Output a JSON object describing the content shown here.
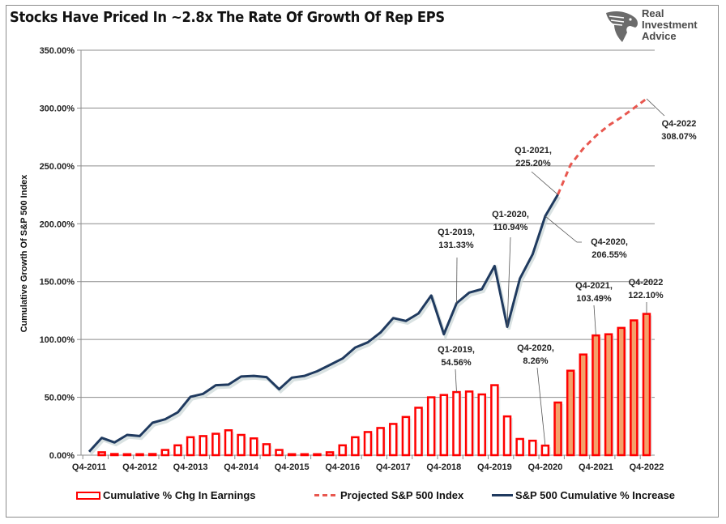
{
  "header": {
    "title": "Stocks Have Priced In ~2.8x The Rate Of Growth Of Rep EPS",
    "logo_lines": [
      "Real",
      "Investment",
      "Advice"
    ],
    "logo_icon": "eagle-head-icon"
  },
  "legend": {
    "items": [
      {
        "label": "Cumulative % Chg In Earnings",
        "swatch": "bar-outline"
      },
      {
        "label": "Projected S&P 500 Index",
        "swatch": "dashed-line"
      },
      {
        "label": "S&P 500 Cumulative % Increase",
        "swatch": "solid-line"
      }
    ]
  },
  "colors": {
    "sp500_line": "#1f3a5f",
    "projection_line": "#e8574f",
    "bar_border": "#ff0000",
    "bar_fill_historical": "#ffffff",
    "bar_fill_projected": "#f4a06a",
    "grid": "#8c8c8c"
  },
  "chart_data": {
    "type": "bar",
    "title": "Stocks Have Priced In ~2.8x The Rate Of Growth Of Rep EPS",
    "xlabel": "",
    "ylabel": "Cumulative Growth Of S&P 500 Index",
    "ylim": [
      0,
      350
    ],
    "yticks": [
      "0.00%",
      "50.00%",
      "100.00%",
      "150.00%",
      "200.00%",
      "250.00%",
      "300.00%",
      "350.00%"
    ],
    "ytick_values": [
      0,
      50,
      100,
      150,
      200,
      250,
      300,
      350
    ],
    "xtick_labels": [
      "Q4-2011",
      "Q4-2012",
      "Q4-2013",
      "Q4-2014",
      "Q4-2015",
      "Q4-2016",
      "Q4-2017",
      "Q4-2018",
      "Q4-2019",
      "Q4-2020",
      "Q4-2021",
      "Q4-2022"
    ],
    "grid": true,
    "legend_position": "bottom",
    "x": [
      "Q4-2011",
      "Q1-2012",
      "Q2-2012",
      "Q3-2012",
      "Q4-2012",
      "Q1-2013",
      "Q2-2013",
      "Q3-2013",
      "Q4-2013",
      "Q1-2014",
      "Q2-2014",
      "Q3-2014",
      "Q4-2014",
      "Q1-2015",
      "Q2-2015",
      "Q3-2015",
      "Q4-2015",
      "Q1-2016",
      "Q2-2016",
      "Q3-2016",
      "Q4-2016",
      "Q1-2017",
      "Q2-2017",
      "Q3-2017",
      "Q4-2017",
      "Q1-2018",
      "Q2-2018",
      "Q3-2018",
      "Q4-2018",
      "Q1-2019",
      "Q2-2019",
      "Q3-2019",
      "Q4-2019",
      "Q1-2020",
      "Q2-2020",
      "Q3-2020",
      "Q4-2020",
      "Q1-2021",
      "Q2-2021",
      "Q3-2021",
      "Q4-2021",
      "Q1-2022",
      "Q2-2022",
      "Q3-2022",
      "Q4-2022"
    ],
    "series": [
      {
        "name": "Cumulative % Chg In Earnings",
        "kind": "bar",
        "projected_from_index": 37,
        "values": [
          0,
          2.5,
          1.0,
          0.5,
          0.5,
          1.0,
          4.5,
          8.5,
          15.5,
          16.5,
          18.5,
          21.5,
          17.5,
          14.5,
          9.5,
          4.5,
          0.5,
          0.5,
          0.5,
          2.5,
          8.5,
          15.5,
          20.0,
          23.5,
          27.0,
          33.0,
          41.0,
          50.0,
          52.0,
          54.56,
          55.0,
          52.5,
          60.5,
          33.5,
          14.0,
          12.5,
          8.26,
          45.5,
          73.0,
          87.0,
          103.49,
          104.5,
          110.0,
          116.5,
          122.1
        ]
      },
      {
        "name": "S&P 500 Cumulative % Increase",
        "kind": "line",
        "values": [
          3.0,
          15.0,
          11.0,
          17.5,
          16.5,
          28.0,
          31.0,
          37.0,
          50.5,
          53.0,
          60.5,
          61.0,
          68.0,
          68.5,
          67.5,
          57.0,
          67.0,
          68.5,
          72.5,
          78.0,
          83.5,
          93.0,
          97.5,
          106.0,
          118.5,
          116.0,
          122.5,
          138.0,
          104.5,
          131.33,
          140.5,
          143.5,
          163.5,
          110.94,
          152.5,
          173.5,
          206.55,
          225.2,
          null,
          null,
          null,
          null,
          null,
          null,
          null
        ]
      },
      {
        "name": "Projected S&P 500 Index",
        "kind": "line-dashed",
        "values": [
          null,
          null,
          null,
          null,
          null,
          null,
          null,
          null,
          null,
          null,
          null,
          null,
          null,
          null,
          null,
          null,
          null,
          null,
          null,
          null,
          null,
          null,
          null,
          null,
          null,
          null,
          null,
          null,
          null,
          null,
          null,
          null,
          null,
          null,
          null,
          null,
          null,
          225.2,
          251.0,
          265.0,
          276.0,
          285.0,
          292.0,
          300.0,
          308.07
        ]
      }
    ],
    "annotations": [
      {
        "text": [
          "Q1-2019,",
          "131.33%"
        ],
        "series": "S&P 500 Cumulative % Increase",
        "x": "Q1-2019",
        "value": 131.33
      },
      {
        "text": [
          "Q1-2020,",
          "110.94%"
        ],
        "series": "S&P 500 Cumulative % Increase",
        "x": "Q1-2020",
        "value": 110.94
      },
      {
        "text": [
          "Q4-2020,",
          "206.55%"
        ],
        "series": "S&P 500 Cumulative % Increase",
        "x": "Q4-2020",
        "value": 206.55
      },
      {
        "text": [
          "Q1-2021,",
          "225.20%"
        ],
        "series": "S&P 500 Cumulative % Increase",
        "x": "Q1-2021",
        "value": 225.2
      },
      {
        "text": [
          "Q4-2022",
          "308.07%"
        ],
        "series": "Projected S&P 500 Index",
        "x": "Q4-2022",
        "value": 308.07
      },
      {
        "text": [
          "Q1-2019,",
          "54.56%"
        ],
        "series": "Cumulative % Chg In Earnings",
        "x": "Q1-2019",
        "value": 54.56
      },
      {
        "text": [
          "Q4-2020,",
          "8.26%"
        ],
        "series": "Cumulative % Chg In Earnings",
        "x": "Q4-2020",
        "value": 8.26
      },
      {
        "text": [
          "Q4-2021,",
          "103.49%"
        ],
        "series": "Cumulative % Chg In Earnings",
        "x": "Q4-2021",
        "value": 103.49
      },
      {
        "text": [
          "Q4-2022",
          "122.10%"
        ],
        "series": "Cumulative % Chg In Earnings",
        "x": "Q4-2022",
        "value": 122.1
      }
    ]
  }
}
